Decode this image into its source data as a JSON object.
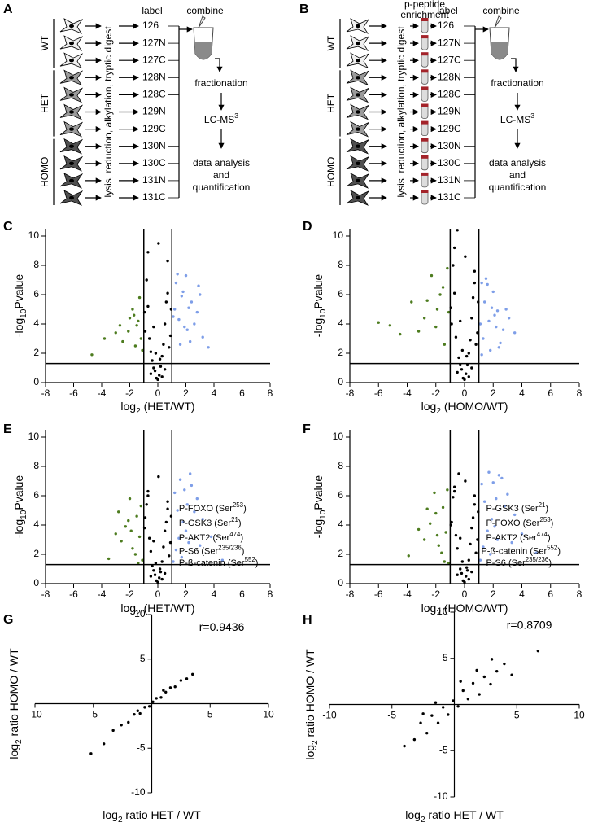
{
  "panel_letters": [
    "A",
    "B",
    "C",
    "D",
    "E",
    "F",
    "G",
    "H"
  ],
  "workflow_a": {
    "groups": [
      {
        "name": "WT",
        "labels": [
          "126",
          "127N",
          "127C"
        ]
      },
      {
        "name": "HET",
        "labels": [
          "128N",
          "128C",
          "129N",
          "129C"
        ]
      },
      {
        "name": "HOMO",
        "labels": [
          "130N",
          "130C",
          "131N",
          "131C"
        ]
      }
    ],
    "step": "lysis, reduction, alkylation, tryptic digest",
    "label_header": "label",
    "combine": "combine",
    "fractionation": "fractionation",
    "lcms": {
      "pre": "LC-MS",
      "sup": "3"
    },
    "analysis": [
      "data analysis",
      "and",
      "quantification"
    ]
  },
  "workflow_b": {
    "groups": [
      {
        "name": "WT",
        "labels": [
          "126",
          "127N",
          "127C"
        ]
      },
      {
        "name": "HET",
        "labels": [
          "128N",
          "128C",
          "129N",
          "129C"
        ]
      },
      {
        "name": "HOMO",
        "labels": [
          "130N",
          "130C",
          "131N",
          "131C"
        ]
      }
    ],
    "step": "lysis, reduction, alkylation, tryptic digest",
    "enrichment": [
      "p-peptide",
      "enrichment"
    ],
    "label_header": "label",
    "combine": "combine",
    "fractionation": "fractionation",
    "lcms": {
      "pre": "LC-MS",
      "sup": "3"
    },
    "analysis": [
      "data analysis",
      "and",
      "quantification"
    ]
  },
  "chart_data": [
    {
      "type": "scatter",
      "axes": "box",
      "xlabel": {
        "pre": "log",
        "sub": "2",
        "post": " (HET/WT)"
      },
      "ylabel": {
        "pre": "-log",
        "sub": "10",
        "post": "Pvalue"
      },
      "xlim": [
        -8,
        8
      ],
      "xticks": [
        -8,
        -6,
        -4,
        -2,
        0,
        2,
        4,
        6,
        8
      ],
      "ylim": [
        0,
        10.5
      ],
      "yticks": [
        0,
        2,
        4,
        6,
        8,
        10
      ],
      "thresholds": {
        "x": [
          -1,
          1
        ],
        "y": 1.3
      },
      "series": [
        {
          "color": "#000000",
          "x": [
            -0.9,
            -0.7,
            -0.5,
            -0.3,
            -0.1,
            0.1,
            0.3,
            0.5,
            0.7,
            0.9,
            -0.8,
            -0.6,
            -0.4,
            -0.2,
            0.0,
            0.2,
            0.4,
            0.6,
            0.8,
            -0.95,
            0.95,
            -0.5,
            0.5,
            -0.3,
            0.3,
            -0.7,
            0.7,
            -0.15,
            0.15,
            0.05
          ],
          "values": [
            3.5,
            5.2,
            2.1,
            1.0,
            0.3,
            0.5,
            1.8,
            4.0,
            6.1,
            3.2,
            7.0,
            3.0,
            1.5,
            0.8,
            0.2,
            1.1,
            2.6,
            5.5,
            2.4,
            4.8,
            5.0,
            0.6,
            0.9,
            3.8,
            0.4,
            8.9,
            8.3,
            2.0,
            1.6,
            9.5
          ]
        },
        {
          "color": "#4d7c1f",
          "x": [
            -1.2,
            -1.4,
            -1.6,
            -1.8,
            -2.1,
            -2.5,
            -3.0,
            -3.8,
            -4.7,
            -1.3,
            -1.5,
            -2.0,
            -1.1,
            -2.7,
            -1.7
          ],
          "values": [
            3.0,
            4.2,
            2.5,
            5.0,
            3.5,
            2.8,
            3.4,
            3.0,
            1.9,
            5.8,
            3.9,
            4.4,
            2.2,
            3.9,
            4.6
          ]
        },
        {
          "color": "#7e9ee8",
          "x": [
            1.2,
            1.5,
            1.8,
            2.1,
            2.4,
            2.8,
            3.2,
            3.6,
            1.3,
            1.7,
            2.0,
            2.6,
            3.0,
            1.1,
            1.9,
            2.3,
            1.4,
            2.2,
            1.6,
            2.9
          ],
          "values": [
            5.0,
            4.3,
            6.2,
            3.6,
            5.5,
            4.8,
            3.1,
            2.4,
            6.8,
            5.9,
            7.3,
            4.0,
            6.0,
            4.5,
            3.8,
            2.8,
            7.4,
            5.1,
            2.6,
            6.6
          ]
        }
      ]
    },
    {
      "type": "scatter",
      "axes": "box",
      "xlabel": {
        "pre": "log",
        "sub": "2",
        "post": " (HOMO/WT)"
      },
      "ylabel": {
        "pre": "-log",
        "sub": "10",
        "post": "Pvalue"
      },
      "xlim": [
        -8,
        8
      ],
      "xticks": [
        -8,
        -6,
        -4,
        -2,
        0,
        2,
        4,
        6,
        8
      ],
      "ylim": [
        0,
        10.5
      ],
      "yticks": [
        0,
        2,
        4,
        6,
        8,
        10
      ],
      "thresholds": {
        "x": [
          -1,
          1
        ],
        "y": 1.3
      },
      "series": [
        {
          "color": "#000000",
          "x": [
            -0.9,
            -0.7,
            -0.5,
            -0.3,
            -0.1,
            0.1,
            0.3,
            0.5,
            0.7,
            0.9,
            -0.8,
            -0.6,
            -0.4,
            -0.2,
            0.0,
            0.2,
            0.4,
            0.6,
            0.8,
            -0.95,
            0.95,
            -0.5,
            0.5,
            -0.3,
            0.3,
            -0.7,
            0.7,
            -0.15,
            0.15,
            0.05
          ],
          "values": [
            4.0,
            6.1,
            10.4,
            1.2,
            0.3,
            0.6,
            2.0,
            4.4,
            6.8,
            3.4,
            8.0,
            3.1,
            1.7,
            0.9,
            0.2,
            1.2,
            2.9,
            5.8,
            2.6,
            5.1,
            5.5,
            0.7,
            1.0,
            4.2,
            0.4,
            9.2,
            7.6,
            2.2,
            1.8,
            8.6
          ]
        },
        {
          "color": "#4d7c1f",
          "x": [
            -1.2,
            -1.5,
            -1.9,
            -2.3,
            -2.8,
            -3.2,
            -3.7,
            -4.5,
            -5.2,
            -6.0,
            -1.4,
            -1.1,
            -2.0,
            -2.6,
            -1.7
          ],
          "values": [
            7.8,
            6.5,
            5.0,
            7.3,
            4.4,
            3.5,
            5.5,
            3.3,
            3.9,
            4.1,
            2.6,
            4.8,
            3.8,
            5.6,
            6.0
          ]
        },
        {
          "color": "#7e9ee8",
          "x": [
            1.2,
            1.4,
            1.7,
            2.0,
            2.3,
            2.7,
            3.1,
            1.3,
            1.6,
            1.9,
            2.5,
            3.5,
            1.1,
            1.8,
            2.2,
            2.9,
            1.5,
            2.4,
            1.2,
            2.1
          ],
          "values": [
            6.8,
            5.5,
            4.2,
            6.2,
            4.9,
            3.6,
            4.4,
            3.0,
            6.7,
            5.1,
            2.7,
            3.4,
            4.0,
            2.2,
            3.8,
            5.0,
            7.1,
            2.4,
            1.9,
            4.6
          ]
        }
      ]
    },
    {
      "type": "scatter",
      "axes": "box",
      "xlabel": {
        "pre": "log",
        "sub": "2",
        "post": " (HET/WT)"
      },
      "ylabel": {
        "pre": "-log",
        "sub": "10",
        "post": "Pvalue"
      },
      "xlim": [
        -8,
        8
      ],
      "xticks": [
        -8,
        -6,
        -4,
        -2,
        0,
        2,
        4,
        6,
        8
      ],
      "ylim": [
        0,
        10.5
      ],
      "yticks": [
        0,
        2,
        4,
        6,
        8,
        10
      ],
      "thresholds": {
        "x": [
          -1,
          1
        ],
        "y": 1.3
      },
      "annotations": [
        {
          "pre": "P-FOXO (Ser",
          "sup": "253",
          "post": ")"
        },
        {
          "pre": "P-GSK3 (Ser",
          "sup": "21",
          "post": ")"
        },
        {
          "pre": "P-AKT2 (Ser",
          "sup": "474",
          "post": ")"
        },
        {
          "pre": "P-S6 (Ser",
          "sup": "235/236",
          "post": ")"
        },
        {
          "pre": "P-ß-catenin (Ser",
          "sup": "552",
          "post": ")"
        }
      ],
      "series": [
        {
          "color": "#000000",
          "x": [
            -0.9,
            -0.7,
            -0.5,
            -0.3,
            -0.1,
            0.1,
            0.3,
            0.5,
            0.7,
            0.9,
            -0.8,
            -0.6,
            -0.4,
            -0.2,
            0.0,
            0.2,
            0.4,
            0.6,
            0.8,
            -0.95,
            0.95,
            -0.5,
            0.5,
            -0.3,
            0.3,
            -0.7,
            0.7,
            -0.15,
            0.15,
            0.05
          ],
          "values": [
            4.5,
            6.0,
            2.2,
            0.9,
            0.2,
            0.4,
            1.5,
            3.6,
            5.1,
            2.8,
            5.4,
            3.1,
            1.2,
            0.6,
            0.1,
            0.8,
            2.5,
            4.2,
            1.9,
            3.8,
            4.6,
            0.5,
            0.7,
            2.9,
            0.3,
            6.3,
            5.6,
            1.4,
            1.0,
            7.3
          ]
        },
        {
          "color": "#4d7c1f",
          "x": [
            -1.1,
            -1.3,
            -1.5,
            -1.8,
            -2.0,
            -2.3,
            -2.6,
            -3.0,
            -3.5,
            -1.2,
            -1.6,
            -2.1,
            -1.4,
            -2.8,
            -1.9
          ],
          "values": [
            1.6,
            3.2,
            4.6,
            2.4,
            5.8,
            3.9,
            2.9,
            3.4,
            1.7,
            5.3,
            2.0,
            4.3,
            1.4,
            4.9,
            3.6
          ]
        },
        {
          "color": "#7e9ee8",
          "x": [
            1.1,
            1.3,
            1.5,
            1.8,
            2.1,
            2.4,
            2.8,
            3.2,
            3.8,
            4.6,
            1.2,
            1.6,
            2.0,
            2.6,
            3.0,
            1.4,
            1.9,
            2.3,
            1.7,
            2.2
          ],
          "values": [
            1.5,
            2.3,
            3.1,
            4.2,
            5.4,
            6.7,
            5.8,
            4.4,
            3.2,
            1.6,
            6.2,
            7.1,
            3.6,
            4.9,
            2.6,
            5.0,
            6.4,
            7.5,
            1.8,
            2.8
          ]
        }
      ]
    },
    {
      "type": "scatter",
      "axes": "box",
      "xlabel": {
        "pre": "log",
        "sub": "2",
        "post": " (HOMO/WT)"
      },
      "ylabel": {
        "pre": "-log",
        "sub": "10",
        "post": "Pvalue"
      },
      "xlim": [
        -8,
        8
      ],
      "xticks": [
        -8,
        -6,
        -4,
        -2,
        0,
        2,
        4,
        6,
        8
      ],
      "ylim": [
        0,
        10.5
      ],
      "yticks": [
        0,
        2,
        4,
        6,
        8,
        10
      ],
      "thresholds": {
        "x": [
          -1,
          1
        ],
        "y": 1.3
      },
      "annotations": [
        {
          "pre": "P-GSK3 (Ser",
          "sup": "21",
          "post": ")"
        },
        {
          "pre": "P-FOXO (Ser",
          "sup": "253",
          "post": ")"
        },
        {
          "pre": "P-AKT2 (Ser",
          "sup": "474",
          "post": ")"
        },
        {
          "pre": "P-ß-catenin (Ser",
          "sup": "552",
          "post": ")"
        },
        {
          "pre": "P-S6 (Ser",
          "sup": "235/236",
          "post": ")"
        }
      ],
      "series": [
        {
          "color": "#000000",
          "x": [
            -0.9,
            -0.7,
            -0.5,
            -0.3,
            -0.1,
            0.1,
            0.3,
            0.5,
            0.7,
            0.9,
            -0.8,
            -0.6,
            -0.4,
            -0.2,
            0.0,
            0.2,
            0.4,
            0.6,
            0.8,
            -0.95,
            0.95,
            -0.5,
            0.5,
            -0.3,
            0.3,
            -0.7,
            0.7,
            -0.15,
            0.15,
            0.05
          ],
          "values": [
            4.2,
            6.3,
            2.4,
            1.0,
            0.2,
            0.5,
            1.6,
            3.8,
            5.4,
            3.0,
            5.9,
            3.3,
            7.5,
            0.7,
            0.1,
            0.9,
            2.7,
            4.5,
            2.1,
            4.0,
            4.9,
            0.6,
            0.8,
            3.1,
            0.3,
            6.6,
            6.0,
            1.5,
            1.1,
            7.0
          ]
        },
        {
          "color": "#4d7c1f",
          "x": [
            -1.1,
            -1.3,
            -1.5,
            -1.8,
            -2.1,
            -2.4,
            -2.8,
            -3.2,
            -3.9,
            -1.2,
            -1.6,
            -2.0,
            -1.4,
            -2.6,
            -1.9
          ],
          "values": [
            1.4,
            3.5,
            5.2,
            2.6,
            6.2,
            4.1,
            3.0,
            3.7,
            1.9,
            6.4,
            2.1,
            4.8,
            1.5,
            5.1,
            3.3
          ]
        },
        {
          "color": "#7e9ee8",
          "x": [
            1.1,
            1.3,
            1.6,
            1.9,
            2.2,
            2.6,
            3.0,
            3.5,
            4.0,
            5.0,
            1.2,
            1.7,
            2.1,
            2.8,
            3.3,
            1.4,
            2.0,
            2.4,
            1.8,
            2.3
          ],
          "values": [
            1.6,
            2.5,
            3.6,
            4.4,
            5.8,
            7.2,
            6.1,
            4.7,
            3.4,
            2.1,
            6.8,
            7.6,
            3.9,
            5.3,
            2.8,
            5.6,
            6.9,
            7.4,
            2.0,
            3.0
          ]
        }
      ]
    },
    {
      "type": "scatter",
      "axes": "origin",
      "annotation": "r=0.9436",
      "xlabel": {
        "pre": "log",
        "sub": "2",
        "post": " ratio HET / WT"
      },
      "ylabel": {
        "pre": "log",
        "sub": "2",
        "post": " ratio HOMO / WT"
      },
      "xlim": [
        -10,
        10
      ],
      "xticks": [
        -10,
        -5,
        5,
        10
      ],
      "ylim": [
        -10,
        10
      ],
      "yticks": [
        -10,
        -5,
        5,
        10
      ],
      "series": [
        {
          "color": "#000000",
          "x": [
            -5.2,
            -4.1,
            -3.3,
            -2.6,
            -2.0,
            -1.5,
            -1.0,
            -0.6,
            -0.2,
            0.1,
            0.4,
            0.8,
            1.2,
            1.6,
            2.0,
            2.5,
            3.0,
            3.5,
            -1.2,
            1.0
          ],
          "values": [
            -5.6,
            -4.5,
            -3.0,
            -2.4,
            -2.1,
            -1.2,
            -1.1,
            -0.4,
            -0.3,
            0.2,
            0.6,
            0.7,
            1.3,
            1.8,
            1.9,
            2.6,
            2.8,
            3.3,
            -0.8,
            1.5
          ]
        }
      ]
    },
    {
      "type": "scatter",
      "axes": "origin",
      "annotation": "r=0.8709",
      "xlabel": {
        "pre": "log",
        "sub": "2",
        "post": " ratio HET / WT"
      },
      "ylabel": {
        "pre": "log",
        "sub": "2",
        "post": " ratio HOMO / WT"
      },
      "xlim": [
        -10,
        10
      ],
      "xticks": [
        -10,
        -5,
        5,
        10
      ],
      "ylim": [
        -10,
        10
      ],
      "yticks": [
        -10,
        -5,
        5,
        10
      ],
      "series": [
        {
          "color": "#000000",
          "x": [
            -4.0,
            -3.2,
            -2.7,
            -2.2,
            -1.8,
            -1.3,
            -0.9,
            -0.5,
            -0.1,
            0.3,
            0.7,
            1.1,
            1.5,
            2.0,
            2.4,
            2.9,
            3.4,
            4.0,
            4.6,
            6.7,
            -1.5,
            0.5,
            1.8,
            -2.5,
            3.0
          ],
          "values": [
            -4.5,
            -3.8,
            -2.0,
            -3.1,
            -1.2,
            -2.0,
            -0.3,
            -1.1,
            0.4,
            -0.2,
            1.5,
            0.6,
            2.3,
            1.1,
            3.0,
            2.2,
            3.6,
            4.4,
            3.2,
            5.8,
            0.2,
            2.5,
            3.7,
            -1.0,
            4.9
          ]
        }
      ]
    }
  ]
}
